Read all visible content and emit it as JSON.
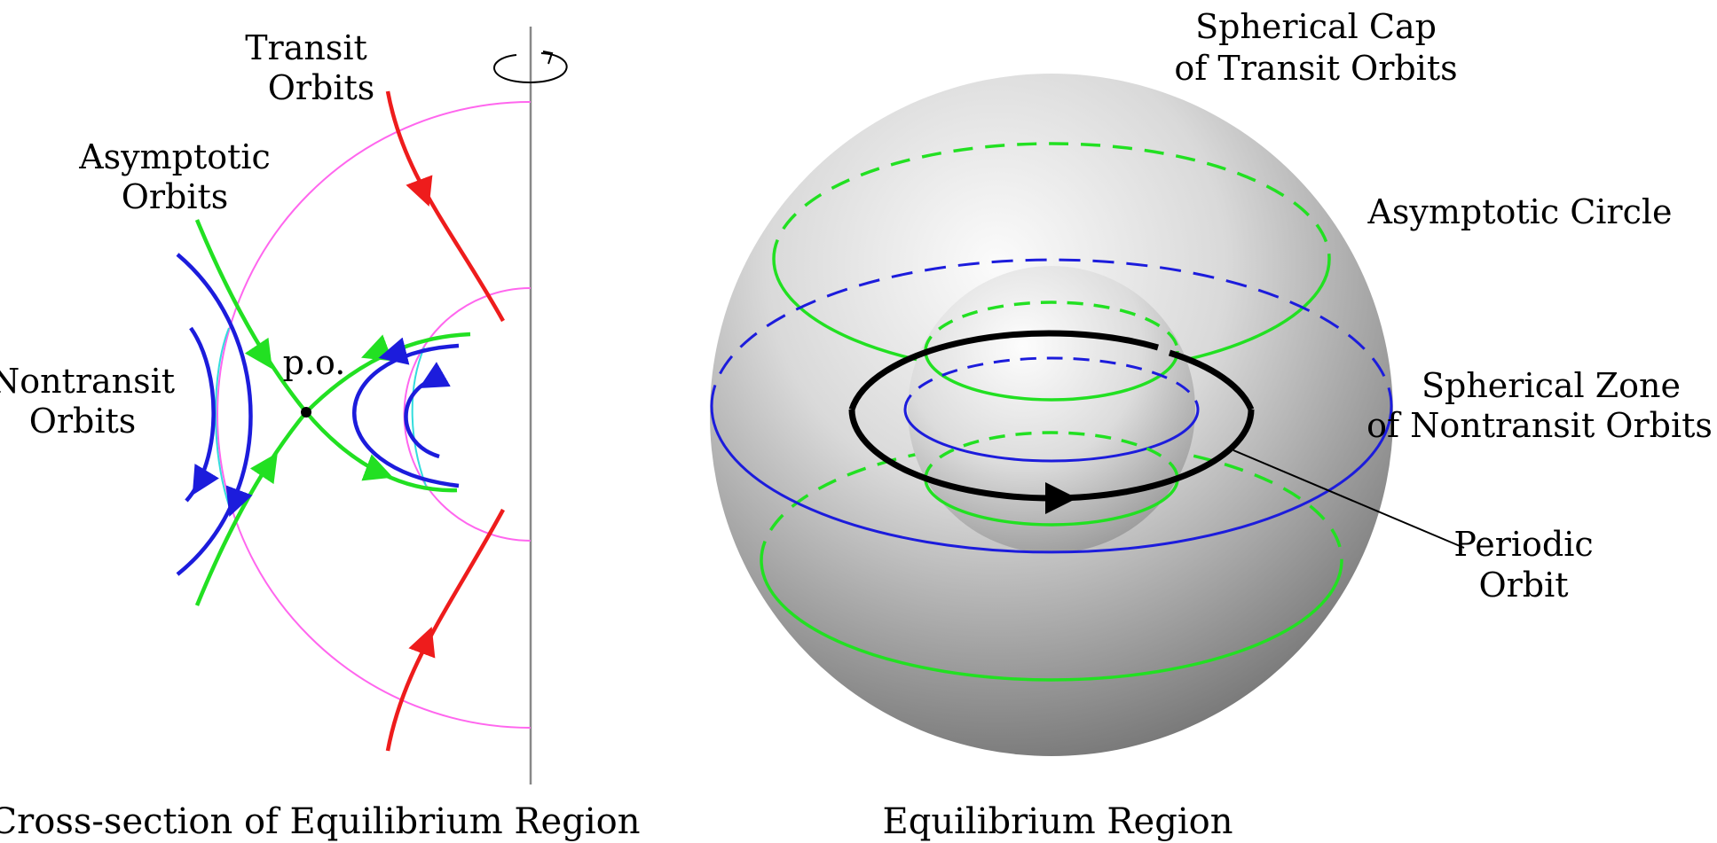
{
  "left_panel": {
    "labels": {
      "transit_line1": "Transit",
      "transit_line2": "Orbits",
      "asymptotic_line1": "Asymptotic",
      "asymptotic_line2": "Orbits",
      "nontransit_line1": "Nontransit",
      "nontransit_line2": "Orbits",
      "po": "p.o."
    },
    "caption": "Cross-section of Equilibrium Region"
  },
  "right_panel": {
    "labels": {
      "cap_line1": "Spherical Cap",
      "cap_line2": "of Transit Orbits",
      "asymptotic_circle": "Asymptotic Circle",
      "zone_line1": "Spherical Zone",
      "zone_line2": "of Nontransit Orbits",
      "periodic_line1": "Periodic",
      "periodic_line2": "Orbit"
    },
    "caption": "Equilibrium Region"
  },
  "colors": {
    "transit": "#ee1c1c",
    "asymptotic": "#22e022",
    "nontransit": "#1c1cdc",
    "boundary_outer": "#ff66ee",
    "boundary_inner": "#33dddd",
    "periodic": "#000000",
    "axis": "#888888"
  }
}
